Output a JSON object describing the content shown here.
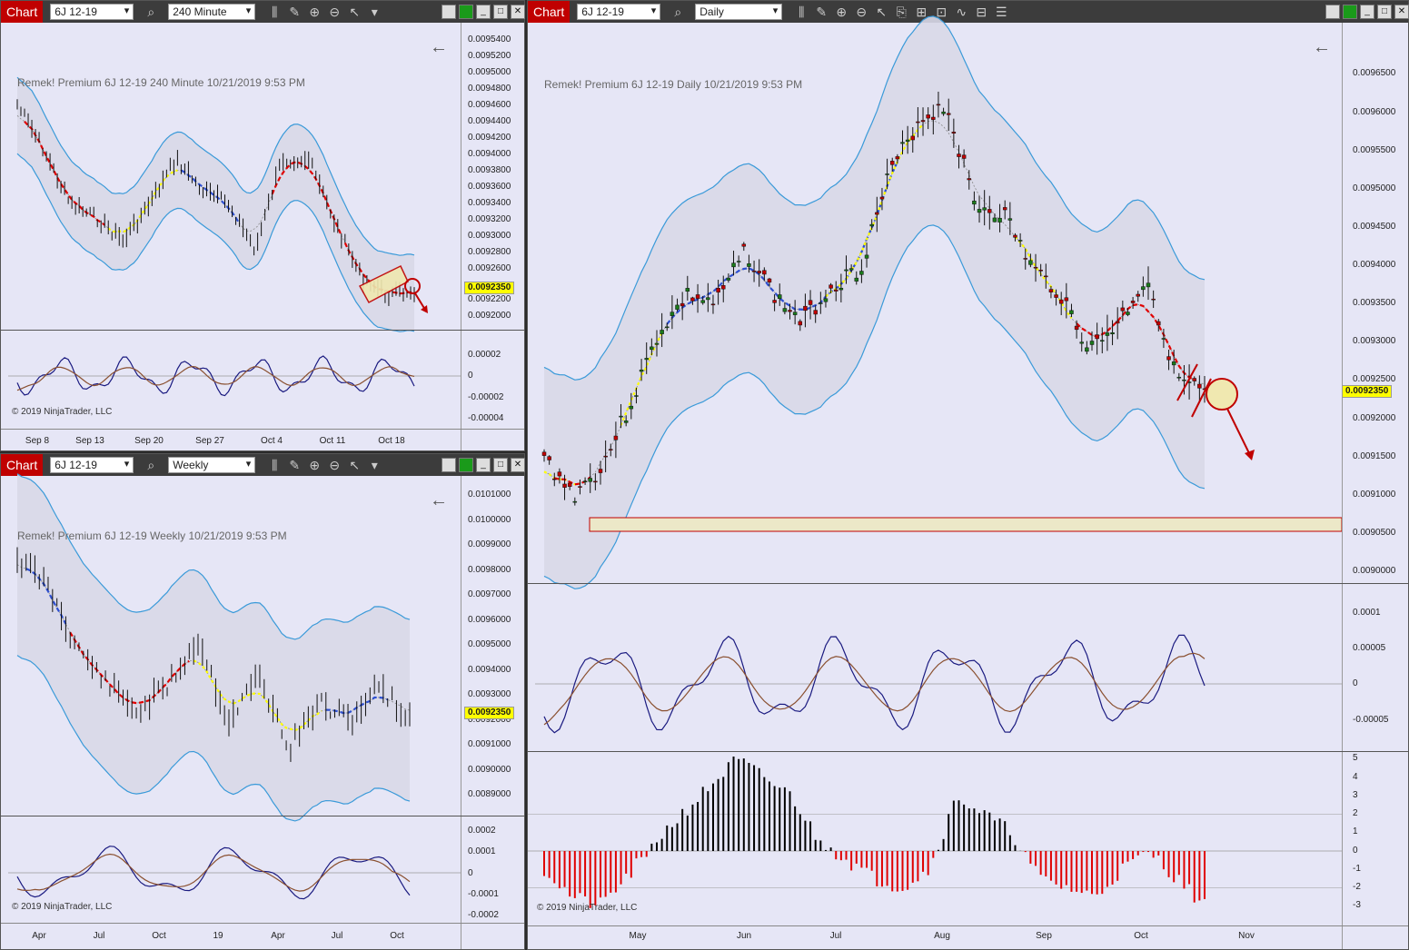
{
  "windows": {
    "w240": {
      "chart_label": "Chart",
      "instrument": "6J 12-19",
      "interval": "240 Minute",
      "header": "Remek!  Premium  6J 12-19  240 Minute  10/21/2019 9:53 PM",
      "price_marker": "0.0092350",
      "price_labels": [
        "0.0095400",
        "0.0095200",
        "0.0095000",
        "0.0094800",
        "0.0094600",
        "0.0094400",
        "0.0094200",
        "0.0094000",
        "0.0093800",
        "0.0093600",
        "0.0093400",
        "0.0093200",
        "0.0093000",
        "0.0092800",
        "0.0092600",
        "0.0092200",
        "0.0092000"
      ],
      "osc_labels": [
        "0.00002",
        "0",
        "-0.00002",
        "-0.00004"
      ],
      "x_labels": [
        "Sep 8",
        "Sep 13",
        "Sep 20",
        "Sep 27",
        "Oct 4",
        "Oct 11",
        "Oct 18"
      ],
      "copyright": "© 2019 NinjaTrader, LLC"
    },
    "wWeekly": {
      "chart_label": "Chart",
      "instrument": "6J 12-19",
      "interval": "Weekly",
      "header": "Remek!  Premium  6J 12-19  Weekly  10/21/2019 9:53 PM",
      "price_marker": "0.0092350",
      "price_labels": [
        "0.0101000",
        "0.0100000",
        "0.0099000",
        "0.0098000",
        "0.0097000",
        "0.0096000",
        "0.0095000",
        "0.0094000",
        "0.0093000",
        "0.0092000",
        "0.0091000",
        "0.0090000",
        "0.0089000"
      ],
      "osc_labels": [
        "0.0002",
        "0.0001",
        "0",
        "-0.0001",
        "-0.0002"
      ],
      "x_labels": [
        "Apr",
        "Jul",
        "Oct",
        "19",
        "Apr",
        "Jul",
        "Oct"
      ],
      "copyright": "© 2019 NinjaTrader, LLC"
    },
    "wDaily": {
      "chart_label": "Chart",
      "instrument": "6J 12-19",
      "interval": "Daily",
      "header": "Remek!  Premium  6J 12-19  Daily  10/21/2019 9:53 PM",
      "price_marker": "0.0092350",
      "price_labels": [
        "0.0096500",
        "0.0096000",
        "0.0095500",
        "0.0095000",
        "0.0094500",
        "0.0094000",
        "0.0093500",
        "0.0093000",
        "0.0092500",
        "0.0092000",
        "0.0091500",
        "0.0091000",
        "0.0090500",
        "0.0090000"
      ],
      "osc_labels": [
        "0.0001",
        "0.00005",
        "0",
        "-0.00005"
      ],
      "hist_labels": [
        "5",
        "4",
        "3",
        "2",
        "1",
        "0",
        "-1",
        "-2",
        "-3"
      ],
      "x_labels": [
        "May",
        "Jun",
        "Jul",
        "Aug",
        "Sep",
        "Oct",
        "Nov"
      ],
      "copyright": "© 2019 NinjaTrader, LLC"
    }
  },
  "icons": [
    "search-icon",
    "bar-style-icon",
    "pencil-icon",
    "zoom-in-icon",
    "zoom-out-icon",
    "pointer-icon",
    "minimize-icon",
    "maximize-icon",
    "close-icon",
    "back-arrow-icon"
  ],
  "colors": {
    "up": "#1a7a1a",
    "down": "#c00000",
    "band": "#3a9ad9",
    "sup": "#2d4fd1",
    "res": "#e00000",
    "mid": "#ffff00",
    "hist_up": "#000000",
    "hist_down": "#e00000"
  }
}
